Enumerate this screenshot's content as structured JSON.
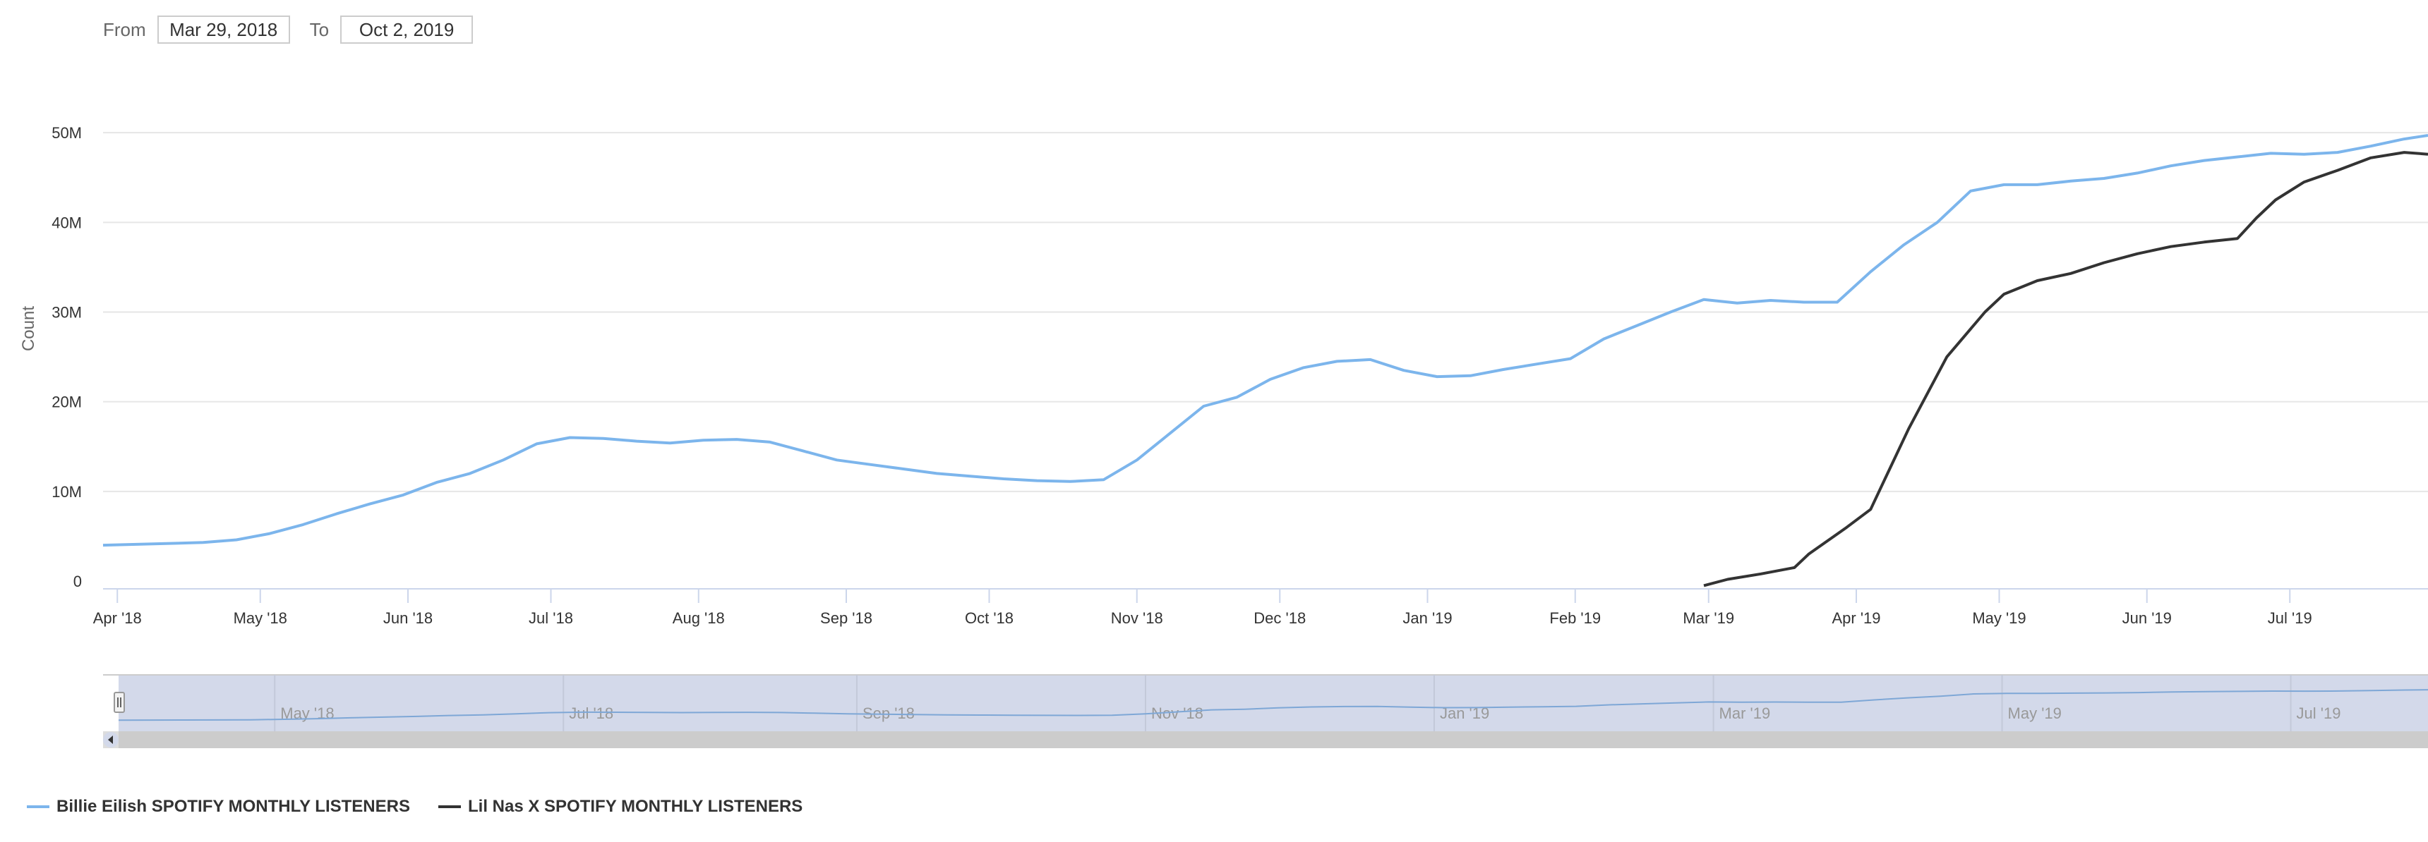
{
  "range_selector": {
    "from_label": "From",
    "from_value": "Mar 29, 2018",
    "to_label": "To",
    "to_value": "Oct 2, 2019"
  },
  "colors": {
    "series1": "#7cb5ec",
    "series2": "#333333",
    "grid": "#e6e6e6",
    "axis": "#ccd6eb",
    "navigator_mask": "#d3d9ea",
    "navigator_series": "#7ea7d6",
    "scrollbar": "#dddddd"
  },
  "chart_data": {
    "type": "line",
    "ylabel": "Count",
    "y_tick_labels": [
      "0",
      "10M",
      "20M",
      "30M",
      "40M",
      "50M"
    ],
    "y_ticks": [
      0,
      10000000,
      20000000,
      30000000,
      40000000,
      50000000
    ],
    "ylim": [
      0,
      53000000
    ],
    "xlim": [
      "2018-03-29",
      "2019-07-30"
    ],
    "x_ticks": [
      {
        "date": "2018-04-01",
        "label": "Apr '18"
      },
      {
        "date": "2018-05-01",
        "label": "May '18"
      },
      {
        "date": "2018-06-01",
        "label": "Jun '18"
      },
      {
        "date": "2018-07-01",
        "label": "Jul '18"
      },
      {
        "date": "2018-08-01",
        "label": "Aug '18"
      },
      {
        "date": "2018-09-01",
        "label": "Sep '18"
      },
      {
        "date": "2018-10-01",
        "label": "Oct '18"
      },
      {
        "date": "2018-11-01",
        "label": "Nov '18"
      },
      {
        "date": "2018-12-01",
        "label": "Dec '18"
      },
      {
        "date": "2019-01-01",
        "label": "Jan '19"
      },
      {
        "date": "2019-02-01",
        "label": "Feb '19"
      },
      {
        "date": "2019-03-01",
        "label": "Mar '19"
      },
      {
        "date": "2019-04-01",
        "label": "Apr '19"
      },
      {
        "date": "2019-05-01",
        "label": "May '19"
      },
      {
        "date": "2019-06-01",
        "label": "Jun '19"
      },
      {
        "date": "2019-07-01",
        "label": "Jul '19"
      }
    ],
    "navigator_ticks": [
      {
        "date": "2018-05-01",
        "label": "May '18"
      },
      {
        "date": "2018-07-01",
        "label": "Jul '18"
      },
      {
        "date": "2018-09-01",
        "label": "Sep '18"
      },
      {
        "date": "2018-11-01",
        "label": "Nov '18"
      },
      {
        "date": "2019-01-01",
        "label": "Jan '19"
      },
      {
        "date": "2019-03-01",
        "label": "Mar '19"
      },
      {
        "date": "2019-05-01",
        "label": "May '19"
      },
      {
        "date": "2019-07-01",
        "label": "Jul '19"
      }
    ],
    "grid": true,
    "legend_position": "bottom-left",
    "series": [
      {
        "name": "Billie Eilish SPOTIFY MONTHLY LISTENERS",
        "points": [
          [
            "2018-03-29",
            4000000
          ],
          [
            "2018-04-05",
            4100000
          ],
          [
            "2018-04-12",
            4200000
          ],
          [
            "2018-04-19",
            4300000
          ],
          [
            "2018-04-26",
            4600000
          ],
          [
            "2018-05-03",
            5300000
          ],
          [
            "2018-05-10",
            6300000
          ],
          [
            "2018-05-17",
            7500000
          ],
          [
            "2018-05-24",
            8600000
          ],
          [
            "2018-05-31",
            9600000
          ],
          [
            "2018-06-07",
            11000000
          ],
          [
            "2018-06-14",
            12000000
          ],
          [
            "2018-06-21",
            13500000
          ],
          [
            "2018-06-28",
            15300000
          ],
          [
            "2018-07-05",
            16000000
          ],
          [
            "2018-07-12",
            15900000
          ],
          [
            "2018-07-19",
            15600000
          ],
          [
            "2018-07-26",
            15400000
          ],
          [
            "2018-08-02",
            15700000
          ],
          [
            "2018-08-09",
            15800000
          ],
          [
            "2018-08-16",
            15500000
          ],
          [
            "2018-08-23",
            14500000
          ],
          [
            "2018-08-30",
            13500000
          ],
          [
            "2018-09-06",
            13000000
          ],
          [
            "2018-09-13",
            12500000
          ],
          [
            "2018-09-20",
            12000000
          ],
          [
            "2018-09-27",
            11700000
          ],
          [
            "2018-10-04",
            11400000
          ],
          [
            "2018-10-11",
            11200000
          ],
          [
            "2018-10-18",
            11100000
          ],
          [
            "2018-10-25",
            11300000
          ],
          [
            "2018-11-01",
            13500000
          ],
          [
            "2018-11-08",
            16500000
          ],
          [
            "2018-11-15",
            19500000
          ],
          [
            "2018-11-22",
            20500000
          ],
          [
            "2018-11-29",
            22500000
          ],
          [
            "2018-12-06",
            23800000
          ],
          [
            "2018-12-13",
            24500000
          ],
          [
            "2018-12-20",
            24700000
          ],
          [
            "2018-12-27",
            23500000
          ],
          [
            "2019-01-03",
            22800000
          ],
          [
            "2019-01-10",
            22900000
          ],
          [
            "2019-01-17",
            23600000
          ],
          [
            "2019-01-24",
            24200000
          ],
          [
            "2019-01-31",
            24800000
          ],
          [
            "2019-02-07",
            27000000
          ],
          [
            "2019-02-14",
            28500000
          ],
          [
            "2019-02-21",
            30000000
          ],
          [
            "2019-02-28",
            31400000
          ],
          [
            "2019-03-07",
            31000000
          ],
          [
            "2019-03-14",
            31300000
          ],
          [
            "2019-03-21",
            31100000
          ],
          [
            "2019-03-28",
            31100000
          ],
          [
            "2019-04-04",
            34500000
          ],
          [
            "2019-04-11",
            37500000
          ],
          [
            "2019-04-18",
            40000000
          ],
          [
            "2019-04-25",
            43500000
          ],
          [
            "2019-05-02",
            44200000
          ],
          [
            "2019-05-09",
            44200000
          ],
          [
            "2019-05-16",
            44600000
          ],
          [
            "2019-05-23",
            44900000
          ],
          [
            "2019-05-30",
            45500000
          ],
          [
            "2019-06-06",
            46300000
          ],
          [
            "2019-06-13",
            46900000
          ],
          [
            "2019-06-20",
            47300000
          ],
          [
            "2019-06-27",
            47700000
          ],
          [
            "2019-07-04",
            47600000
          ],
          [
            "2019-07-11",
            47800000
          ],
          [
            "2019-07-18",
            48500000
          ],
          [
            "2019-07-25",
            49300000
          ],
          [
            "2019-07-30",
            49700000
          ]
        ]
      },
      {
        "name": "Lil Nas X SPOTIFY MONTHLY LISTENERS",
        "points": [
          [
            "2019-02-28",
            -500000
          ],
          [
            "2019-03-05",
            200000
          ],
          [
            "2019-03-12",
            800000
          ],
          [
            "2019-03-19",
            1500000
          ],
          [
            "2019-03-22",
            3000000
          ],
          [
            "2019-03-26",
            4500000
          ],
          [
            "2019-03-30",
            6000000
          ],
          [
            "2019-04-04",
            8000000
          ],
          [
            "2019-04-08",
            12500000
          ],
          [
            "2019-04-12",
            17000000
          ],
          [
            "2019-04-16",
            21000000
          ],
          [
            "2019-04-20",
            25000000
          ],
          [
            "2019-04-24",
            27500000
          ],
          [
            "2019-04-28",
            30000000
          ],
          [
            "2019-05-02",
            32000000
          ],
          [
            "2019-05-09",
            33500000
          ],
          [
            "2019-05-16",
            34300000
          ],
          [
            "2019-05-23",
            35500000
          ],
          [
            "2019-05-30",
            36500000
          ],
          [
            "2019-06-06",
            37300000
          ],
          [
            "2019-06-13",
            37800000
          ],
          [
            "2019-06-20",
            38200000
          ],
          [
            "2019-06-24",
            40500000
          ],
          [
            "2019-06-28",
            42500000
          ],
          [
            "2019-07-04",
            44500000
          ],
          [
            "2019-07-11",
            45800000
          ],
          [
            "2019-07-18",
            47200000
          ],
          [
            "2019-07-25",
            47800000
          ],
          [
            "2019-07-30",
            47600000
          ]
        ]
      }
    ]
  }
}
